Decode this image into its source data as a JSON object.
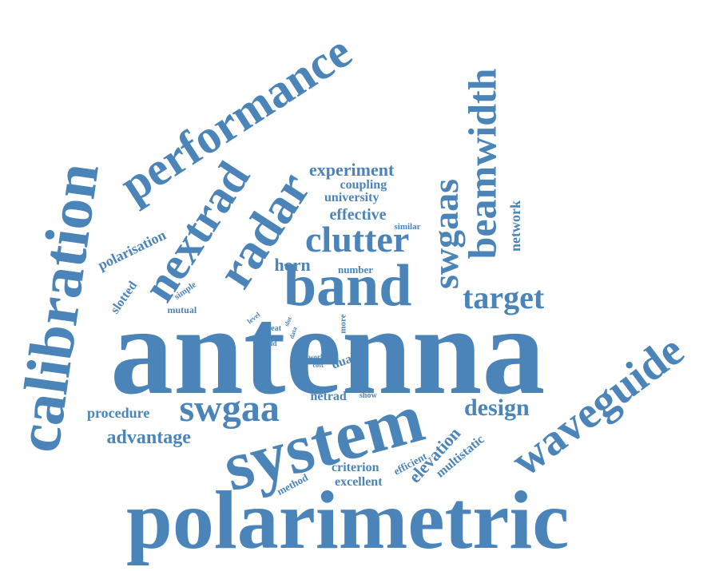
{
  "cloud": {
    "color": "#4a84b8",
    "words": [
      "antenna",
      "polarimetric",
      "system",
      "calibration",
      "band",
      "performance",
      "radar",
      "waveguide",
      "nextrad",
      "beamwidth",
      "clutter",
      "swgaas",
      "swgaa",
      "target",
      "experiment",
      "coupling",
      "university",
      "effective",
      "polarisation",
      "design",
      "advantage",
      "network",
      "horn",
      "number",
      "similar",
      "simple",
      "slotted",
      "mutual",
      "level",
      "great",
      "slot",
      "data",
      "field",
      "more",
      "work",
      "cost",
      "dual",
      "procedure",
      "netrad",
      "show",
      "elevation",
      "efficient",
      "multistatic",
      "criterion",
      "method",
      "excellent"
    ]
  }
}
